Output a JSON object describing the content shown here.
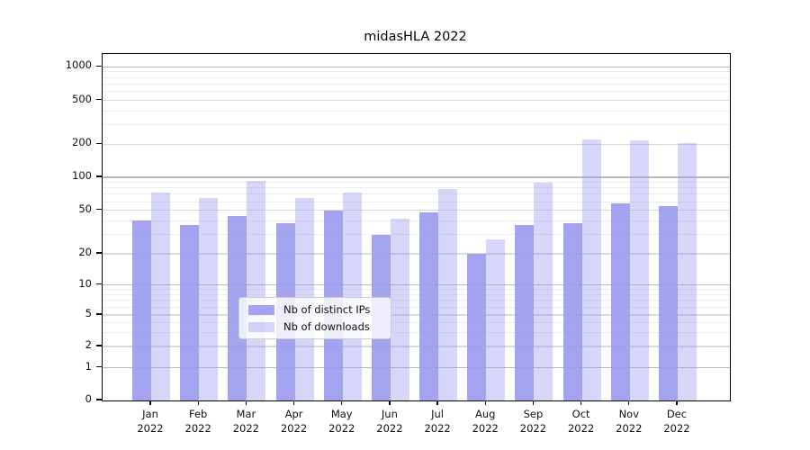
{
  "chart_data": {
    "type": "bar",
    "title": "midasHLA 2022",
    "categories": [
      "Jan",
      "Feb",
      "Mar",
      "Apr",
      "May",
      "Jun",
      "Jul",
      "Aug",
      "Sep",
      "Oct",
      "Nov",
      "Dec"
    ],
    "category_year": "2022",
    "series": [
      {
        "name": "Nb of distinct IPs",
        "color": "rgba(153,153,238,0.9)",
        "values": [
          40,
          37,
          44,
          38,
          50,
          30,
          48,
          20,
          37,
          38,
          58,
          55
        ]
      },
      {
        "name": "Nb of downloads",
        "color": "rgba(153,153,238,0.4)",
        "values": [
          72,
          65,
          93,
          65,
          73,
          42,
          78,
          27,
          89,
          220,
          216,
          205
        ]
      }
    ],
    "y_axis": {
      "ticks": [
        0,
        1,
        2,
        5,
        10,
        20,
        50,
        100,
        200,
        500,
        1000
      ],
      "minor_gridlines": [
        3,
        4,
        6,
        7,
        8,
        9,
        30,
        40,
        60,
        70,
        80,
        90,
        300,
        400,
        600,
        700,
        800,
        900
      ],
      "scale": "symlog",
      "ylim": [
        0,
        1400
      ]
    },
    "xlabel": "",
    "ylabel": "",
    "grid": true,
    "legend_position": "bottom-center-inside",
    "colors": {
      "bar_base": "#9999ee",
      "grid_major": "#b9b9b9",
      "grid_mid": "#d9d9d9",
      "grid_minor": "#ececec",
      "spine": "#000000",
      "legend_border": "#cccccc"
    }
  }
}
